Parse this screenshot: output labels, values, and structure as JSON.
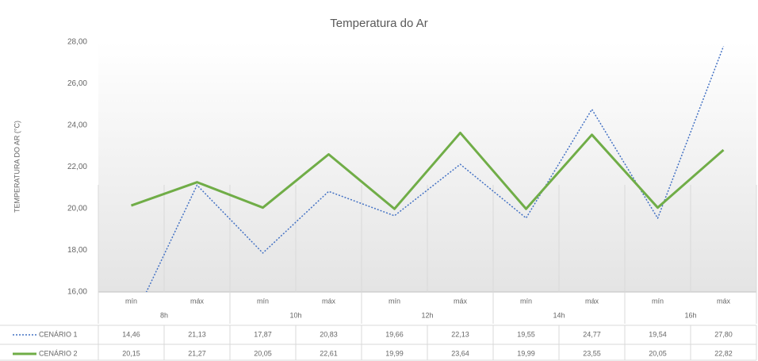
{
  "chart_data": {
    "type": "line",
    "title": "Temperatura do Ar",
    "y_label": "TEMPERATURA DO AR (°C)",
    "categories": [
      "mín",
      "máx",
      "mín",
      "máx",
      "mín",
      "máx",
      "mín",
      "máx",
      "mín",
      "máx"
    ],
    "groups": [
      "8h",
      "10h",
      "12h",
      "14h",
      "16h"
    ],
    "series": [
      {
        "name": "CENÁRIO 1",
        "color": "#4472c4",
        "style": "dotted",
        "values": [
          14.46,
          21.13,
          17.87,
          20.83,
          19.66,
          22.13,
          19.55,
          24.77,
          19.54,
          27.8
        ],
        "value_labels": [
          "14,46",
          "21,13",
          "17,87",
          "20,83",
          "19,66",
          "22,13",
          "19,55",
          "24,77",
          "19,54",
          "27,80"
        ]
      },
      {
        "name": "CENÁRIO 2",
        "color": "#70ad47",
        "style": "solid",
        "values": [
          20.15,
          21.27,
          20.05,
          22.61,
          19.99,
          23.64,
          19.99,
          23.55,
          20.05,
          22.82
        ],
        "value_labels": [
          "20,15",
          "21,27",
          "20,05",
          "22,61",
          "19,99",
          "23,64",
          "19,99",
          "23,55",
          "20,05",
          "22,82"
        ]
      }
    ],
    "ylim": [
      16,
      28
    ],
    "yticks": [
      {
        "value": 16,
        "label": "16,00"
      },
      {
        "value": 18,
        "label": "18,00"
      },
      {
        "value": 20,
        "label": "20,00"
      },
      {
        "value": 22,
        "label": "22,00"
      },
      {
        "value": 24,
        "label": "24,00"
      },
      {
        "value": 26,
        "label": "26,00"
      },
      {
        "value": 28,
        "label": "28,00"
      }
    ],
    "grid": "vertical"
  }
}
